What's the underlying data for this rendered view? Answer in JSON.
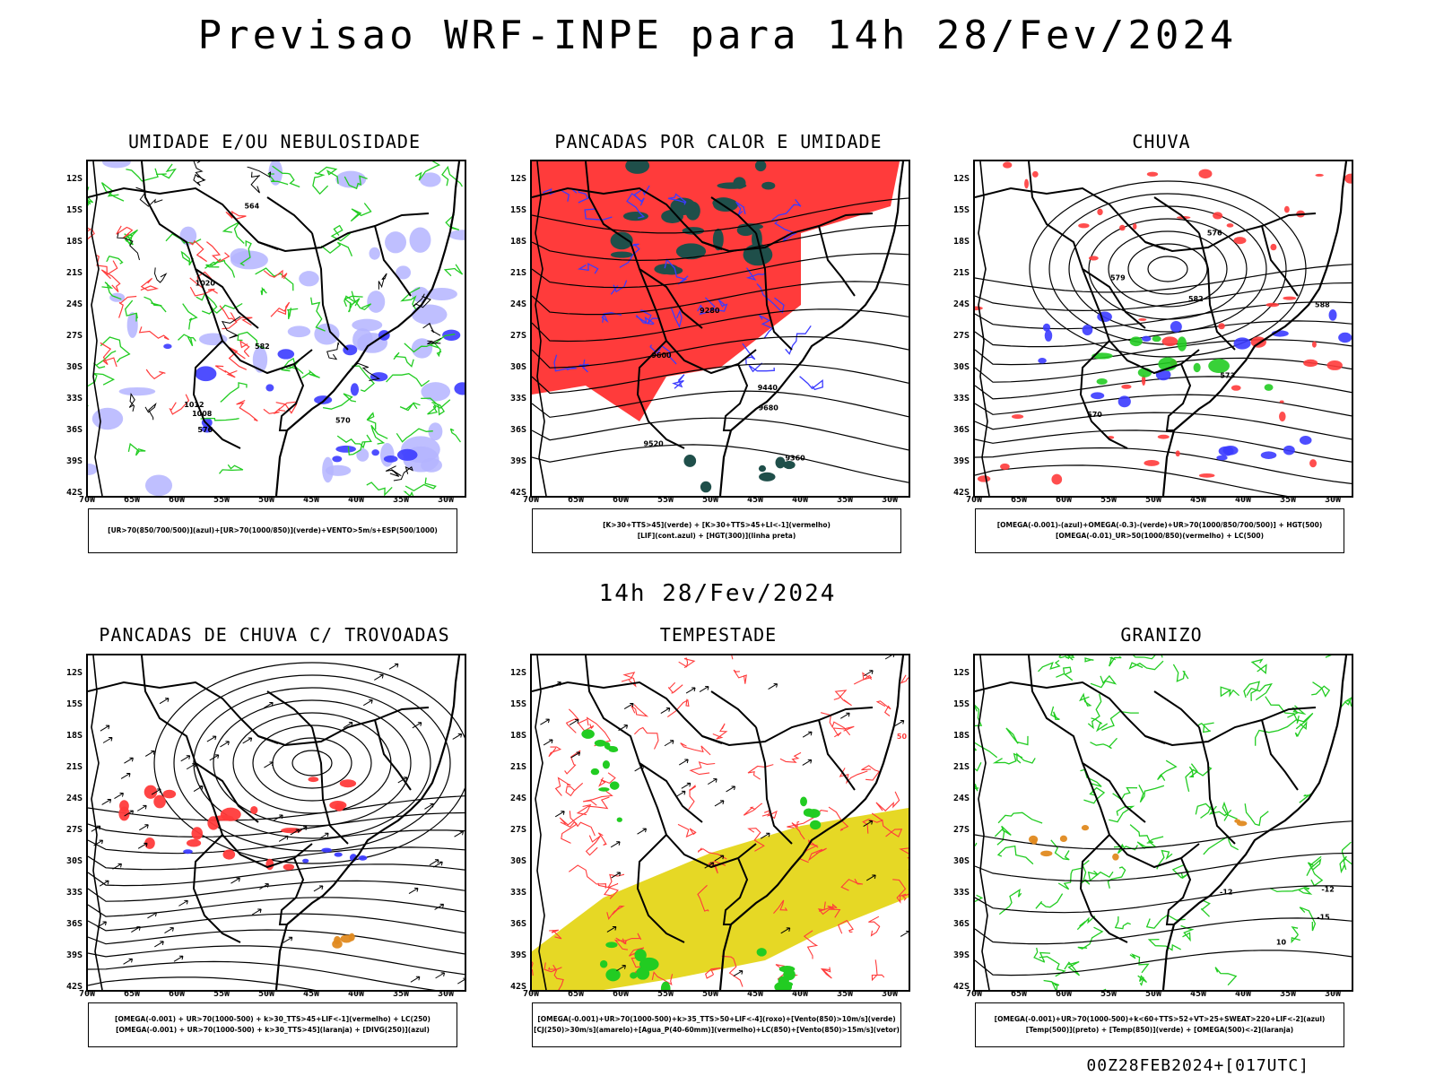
{
  "main_title": "Previsao WRF-INPE  para 14h 28/Fev/2024",
  "subtitle": "14h 28/Fev/2024",
  "footer": "00Z28FEB2024+[017UTC]",
  "axes": {
    "lat_labels": [
      "12S",
      "15S",
      "18S",
      "21S",
      "24S",
      "27S",
      "30S",
      "33S",
      "36S",
      "39S",
      "42S"
    ],
    "lon_labels": [
      "70W",
      "65W",
      "60W",
      "55W",
      "50W",
      "45W",
      "40W",
      "35W",
      "30W"
    ]
  },
  "colors": {
    "blue": "#3b3bff",
    "green": "#22cc22",
    "red": "#ff3b3b",
    "darkteal": "#1f4f4a",
    "yellow": "#e6d825",
    "orange": "#e08a20",
    "lavender": "#b4b4ff"
  },
  "chart_data": [
    {
      "type": "map",
      "title": "UMIDADE E/OU NEBULOSIDADE",
      "legend": [
        "[UR>70(850/700/500)](azul)+[UR>70(1000/850)](verde)+VENTO>5m/s+ESP(500/1000)"
      ],
      "contour_labels": [
        "1012",
        "1008",
        "1020",
        "582",
        "576",
        "570",
        "564"
      ]
    },
    {
      "type": "map",
      "title": "PANCADAS POR CALOR E UMIDADE",
      "legend": [
        "[K>30+TTS>45](verde)  +  [K>30+TTS>45+LI<-1](vermelho)",
        "[LIF](cont.azul)  +  [HGT(300)](linha preta)"
      ],
      "contour_labels": [
        "9680",
        "9600",
        "9520",
        "9440",
        "9360",
        "9280"
      ]
    },
    {
      "type": "map",
      "title": "CHUVA",
      "legend": [
        "[OMEGA(-0.001)-(azul)+OMEGA(-0.3)-(verde)+UR>70(1000/850/700/500)]  +  HGT(500)",
        "[OMEGA(-0.01)_UR>50(1000/850)(vermelho)  +  LC(500)"
      ],
      "contour_labels": [
        "588",
        "582",
        "579",
        "576",
        "573",
        "570"
      ]
    },
    {
      "type": "map",
      "title": "PANCADAS DE CHUVA C/ TROVOADAS",
      "legend": [
        "[OMEGA(-0.001)  +  UR>70(1000-500)  +  k>30_TTS>45+LIF<-1](vermelho)  +  LC(250)",
        "[OMEGA(-0.001)  +  UR>70(1000-500)  +  k>30_TTS>45](laranja)  +  [DIVG(250)](azul)"
      ],
      "contour_labels": []
    },
    {
      "type": "map",
      "title": "TEMPESTADE",
      "legend": [
        "[OMEGA(-0.001)+UR>70(1000-500)+k>35_TTS>50+LIF<-4](roxo)+[Vento(850)>10m/s](verde)",
        "[CJ(250)>30m/s](amarelo)+[Agua_P(40-60mm)](vermelho)+LC(850)+[Vento(850)>15m/s](vetor)"
      ],
      "contour_labels": [
        "50"
      ]
    },
    {
      "type": "map",
      "title": "GRANIZO",
      "legend": [
        "[OMEGA(-0.001)+UR>70(1000-500)+k<60+TTS>52+VT>25+SWEAT>220+LIF<-2](azul)",
        "[Temp(500)](preto)  +  [Temp(850)](verde)  +  [OMEGA(500)<-2](laranja)"
      ],
      "contour_labels": [
        "-12",
        "-15",
        "-12",
        "10"
      ]
    }
  ]
}
